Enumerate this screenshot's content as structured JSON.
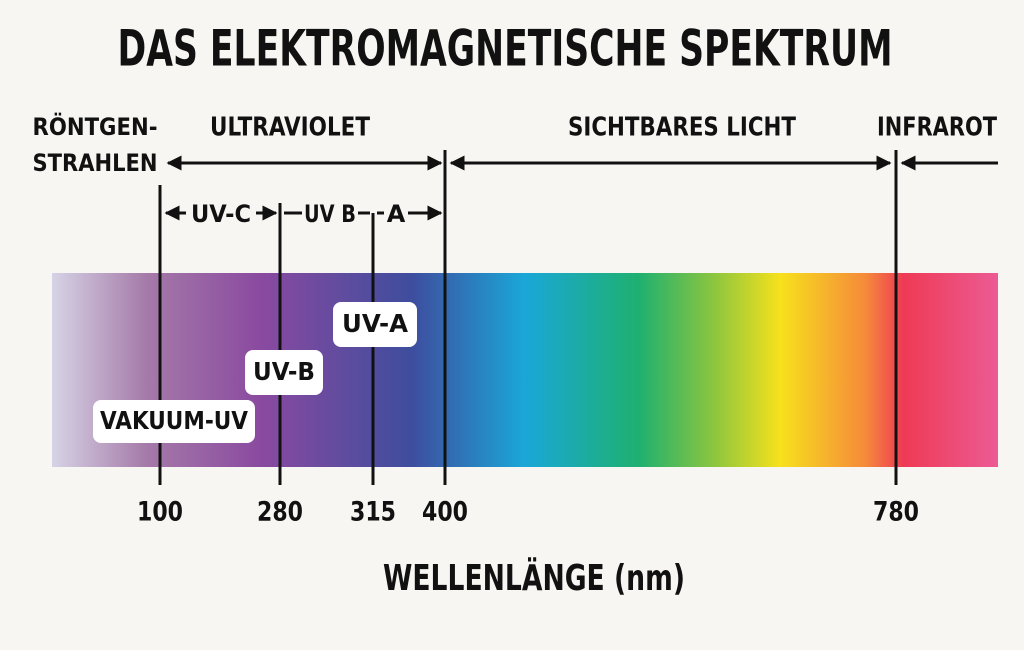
{
  "title": "DAS ELEKTROMAGNETISCHE SPEKTRUM",
  "regions": {
    "xray": [
      "RÖNTGEN-",
      "STRAHLEN"
    ],
    "uv": "ULTRAVIOLET",
    "visible": "SICHTBARES LICHT",
    "infrared": "INFRAROT"
  },
  "sub_bands": [
    "UV-C",
    "UV B",
    "A"
  ],
  "band_labels": [
    "VAKUUM-UV",
    "UV-B",
    "UV-A"
  ],
  "ticks": [
    100,
    280,
    315,
    400,
    780
  ],
  "axis_label": "WELLENLÄNGE (nm)"
}
